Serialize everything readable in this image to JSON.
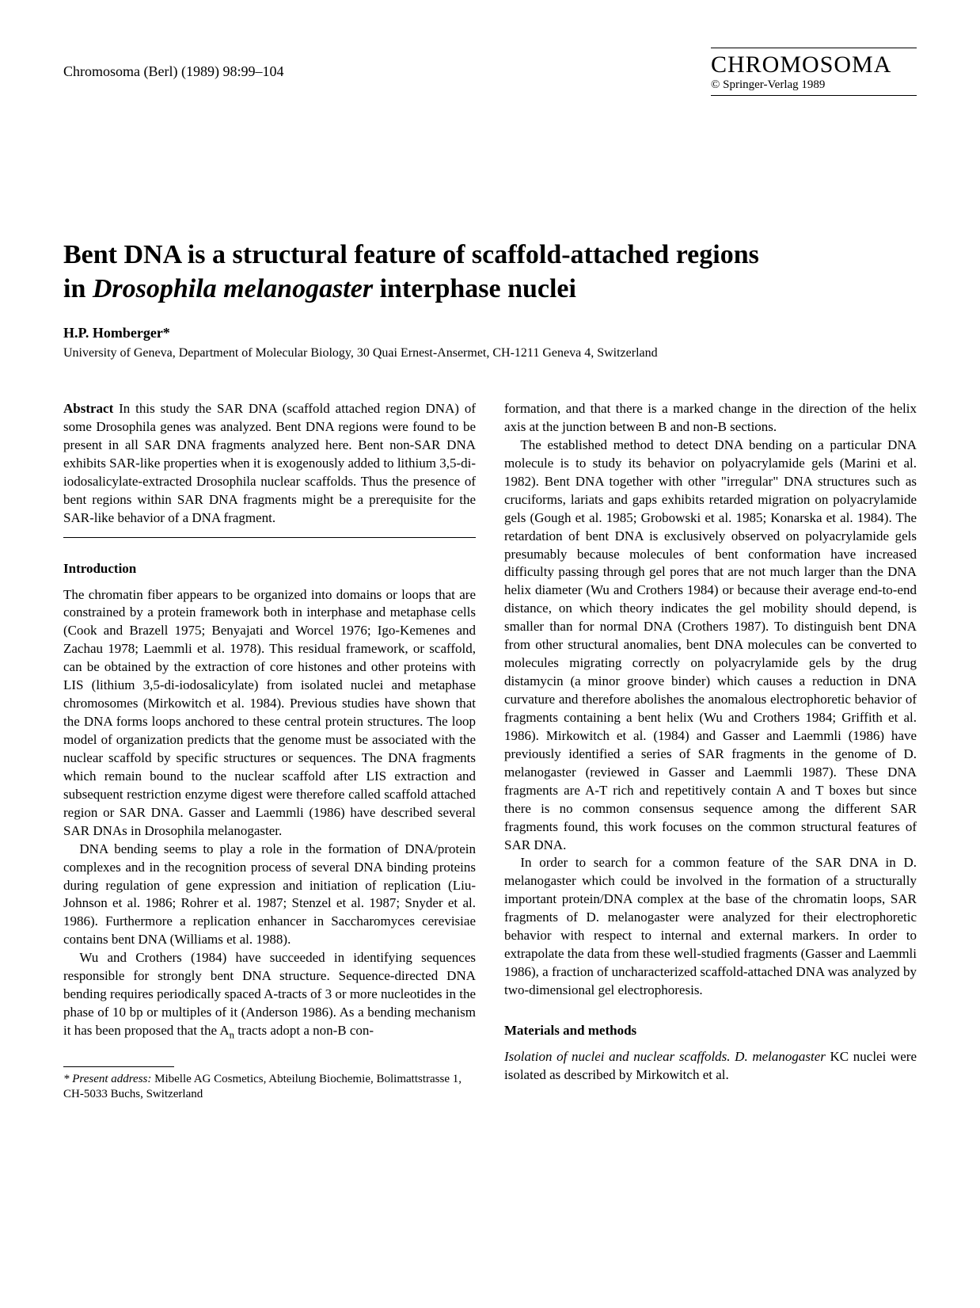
{
  "header": {
    "citation": "Chromosoma (Berl) (1989) 98:99–104",
    "journal": "CHROMOSOMA",
    "copyright": "© Springer-Verlag 1989"
  },
  "title_line1": "Bent DNA is a structural feature of scaffold-attached regions",
  "title_line2_pre": "in ",
  "title_line2_italic": "Drosophila melanogaster",
  "title_line2_post": " interphase nuclei",
  "author": "H.P. Homberger*",
  "affiliation": "University of Geneva, Department of Molecular Biology, 30 Quai Ernest-Ansermet, CH-1211 Geneva 4, Switzerland",
  "left": {
    "abstract_label": "Abstract",
    "abstract_text": " In this study the SAR DNA (scaffold attached region DNA) of some Drosophila genes was analyzed. Bent DNA regions were found to be present in all SAR DNA fragments analyzed here. Bent non-SAR DNA exhibits SAR-like properties when it is exogenously added to lithium 3,5-di-iodosalicylate-extracted Drosophila nuclear scaffolds. Thus the presence of bent regions within SAR DNA fragments might be a prerequisite for the SAR-like behavior of a DNA fragment.",
    "intro_heading": "Introduction",
    "intro_p1": "The chromatin fiber appears to be organized into domains or loops that are constrained by a protein framework both in interphase and metaphase cells (Cook and Brazell 1975; Benyajati and Worcel 1976; Igo-Kemenes and Zachau 1978; Laemmli et al. 1978). This residual framework, or scaffold, can be obtained by the extraction of core histones and other proteins with LIS (lithium 3,5-di-iodosalicylate) from isolated nuclei and metaphase chromosomes (Mirkowitch et al. 1984). Previous studies have shown that the DNA forms loops anchored to these central protein structures. The loop model of organization predicts that the genome must be associated with the nuclear scaffold by specific structures or sequences. The DNA fragments which remain bound to the nuclear scaffold after LIS extraction and subsequent restriction enzyme digest were therefore called scaffold attached region or SAR DNA. Gasser and Laemmli (1986) have described several SAR DNAs in Drosophila melanogaster.",
    "intro_p2": "DNA bending seems to play a role in the formation of DNA/protein complexes and in the recognition process of several DNA binding proteins during regulation of gene expression and initiation of replication (Liu-Johnson et al. 1986; Rohrer et al. 1987; Stenzel et al. 1987; Snyder et al. 1986). Furthermore a replication enhancer in Saccharomyces cerevisiae contains bent DNA (Williams et al. 1988).",
    "intro_p3_pre": "Wu and Crothers (1984) have succeeded in identifying sequences responsible for strongly bent DNA structure. Sequence-directed DNA bending requires periodically spaced A-tracts of 3 or more nucleotides in the phase of 10 bp or multiples of it (Anderson 1986). As a bending mechanism it has been proposed that the A",
    "intro_p3_sub": "n",
    "intro_p3_post": " tracts adopt a non-B con-",
    "footnote_label": "* Present address:",
    "footnote_text": " Mibelle AG Cosmetics, Abteilung Biochemie, Bolimattstrasse 1, CH-5033 Buchs, Switzerland"
  },
  "right": {
    "p1": "formation, and that there is a marked change in the direction of the helix axis at the junction between B and non-B sections.",
    "p2": "The established method to detect DNA bending on a particular DNA molecule is to study its behavior on polyacrylamide gels (Marini et al. 1982). Bent DNA together with other \"irregular\" DNA structures such as cruciforms, lariats and gaps exhibits retarded migration on polyacrylamide gels (Gough et al. 1985; Grobowski et al. 1985; Konarska et al. 1984). The retardation of bent DNA is exclusively observed on polyacrylamide gels presumably because molecules of bent conformation have increased difficulty passing through gel pores that are not much larger than the DNA helix diameter (Wu and Crothers 1984) or because their average end-to-end distance, on which theory indicates the gel mobility should depend, is smaller than for normal DNA (Crothers 1987). To distinguish bent DNA from other structural anomalies, bent DNA molecules can be converted to molecules migrating correctly on polyacrylamide gels by the drug distamycin (a minor groove binder) which causes a reduction in DNA curvature and therefore abolishes the anomalous electrophoretic behavior of fragments containing a bent helix (Wu and Crothers 1984; Griffith et al. 1986). Mirkowitch et al. (1984) and Gasser and Laemmli (1986) have previously identified a series of SAR fragments in the genome of D. melanogaster (reviewed in Gasser and Laemmli 1987). These DNA fragments are A-T rich and repetitively contain A and T boxes but since there is no common consensus sequence among the different SAR fragments found, this work focuses on the common structural features of SAR DNA.",
    "p3": "In order to search for a common feature of the SAR DNA in D. melanogaster which could be involved in the formation of a structurally important protein/DNA complex at the base of the chromatin loops, SAR fragments of D. melanogaster were analyzed for their electrophoretic behavior with respect to internal and external markers. In order to extrapolate the data from these well-studied fragments (Gasser and Laemmli 1986), a fraction of uncharacterized scaffold-attached DNA was analyzed by two-dimensional gel electrophoresis.",
    "mm_heading": "Materials and methods",
    "mm_p1_italic": "Isolation of nuclei and nuclear scaffolds. D. melanogaster",
    "mm_p1_rest": " KC nuclei were isolated as described by Mirkowitch et al."
  }
}
